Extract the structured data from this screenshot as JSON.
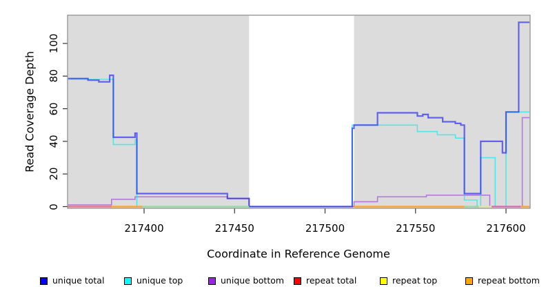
{
  "chart_data": {
    "type": "line",
    "xlabel": "Coordinate in Reference Genome",
    "ylabel": "Read Coverage Depth",
    "xlim": [
      217357.5,
      217613.5
    ],
    "ylim": [
      0,
      117
    ],
    "x_ticks": [
      217400,
      217450,
      217500,
      217550,
      217600
    ],
    "y_ticks": [
      0,
      20,
      40,
      60,
      80,
      100
    ],
    "plot_bg": "#DCDCDC",
    "box_color": "#8C8C8C",
    "tick_color": "#333333",
    "gap_region": {
      "from": 217458,
      "to": 217516,
      "color": "#FFFFFF"
    },
    "series": [
      {
        "name": "unique total",
        "legend_color": "#0000FF",
        "stroke": "rgba(20,20,255,0.62)",
        "width": 2.2,
        "draw_order": 6,
        "points": [
          [
            217358,
            78.5
          ],
          [
            217369,
            78.5
          ],
          [
            217369,
            77.5
          ],
          [
            217375,
            77.5
          ],
          [
            217375,
            76.5
          ],
          [
            217381,
            76.5
          ],
          [
            217381,
            80.5
          ],
          [
            217383,
            80.5
          ],
          [
            217383,
            42.5
          ],
          [
            217395,
            42.5
          ],
          [
            217395,
            45
          ],
          [
            217396,
            45
          ],
          [
            217396,
            8
          ],
          [
            217446,
            8
          ],
          [
            217446,
            5
          ],
          [
            217458,
            5
          ],
          [
            217458,
            0
          ],
          [
            217515,
            0
          ],
          [
            217515,
            48
          ],
          [
            217516,
            48
          ],
          [
            217516,
            50
          ],
          [
            217529,
            50
          ],
          [
            217529,
            57.5
          ],
          [
            217551,
            57.5
          ],
          [
            217551,
            55.5
          ],
          [
            217554,
            55.5
          ],
          [
            217554,
            56.5
          ],
          [
            217557,
            56.5
          ],
          [
            217557,
            54.5
          ],
          [
            217565,
            54.5
          ],
          [
            217565,
            52
          ],
          [
            217572,
            52
          ],
          [
            217572,
            51
          ],
          [
            217575,
            51
          ],
          [
            217575,
            50
          ],
          [
            217577,
            50
          ],
          [
            217577,
            8
          ],
          [
            217586,
            8
          ],
          [
            217586,
            40
          ],
          [
            217598,
            40
          ],
          [
            217598,
            33
          ],
          [
            217600,
            33
          ],
          [
            217600,
            58
          ],
          [
            217607,
            58
          ],
          [
            217607,
            113
          ],
          [
            217613,
            113
          ]
        ]
      },
      {
        "name": "unique top",
        "legend_color": "#00FFFF",
        "stroke": "rgba(0,235,235,0.62)",
        "width": 1.6,
        "draw_order": 5,
        "points": [
          [
            217358,
            78
          ],
          [
            217383,
            78
          ],
          [
            217383,
            38
          ],
          [
            217395,
            38
          ],
          [
            217395,
            41
          ],
          [
            217396,
            41
          ],
          [
            217396,
            0
          ],
          [
            217515,
            0
          ],
          [
            217515,
            50
          ],
          [
            217551,
            50
          ],
          [
            217551,
            46
          ],
          [
            217562,
            46
          ],
          [
            217562,
            44
          ],
          [
            217572,
            44
          ],
          [
            217572,
            42
          ],
          [
            217577,
            42
          ],
          [
            217577,
            4
          ],
          [
            217584,
            4
          ],
          [
            217584,
            0
          ],
          [
            217586,
            0
          ],
          [
            217586,
            30
          ],
          [
            217594,
            30
          ],
          [
            217594,
            0
          ],
          [
            217600,
            0
          ],
          [
            217600,
            58
          ],
          [
            217613,
            58
          ]
        ]
      },
      {
        "name": "unique bottom",
        "legend_color": "#A020F0",
        "stroke": "rgba(160,50,235,0.60)",
        "width": 1.6,
        "draw_order": 4,
        "points": [
          [
            217358,
            1
          ],
          [
            217382,
            1
          ],
          [
            217382,
            4.5
          ],
          [
            217395,
            4.5
          ],
          [
            217395,
            6
          ],
          [
            217446,
            6
          ],
          [
            217446,
            5
          ],
          [
            217458,
            5
          ],
          [
            217458,
            0
          ],
          [
            217516,
            0
          ],
          [
            217516,
            3
          ],
          [
            217529,
            3
          ],
          [
            217529,
            6
          ],
          [
            217556,
            6
          ],
          [
            217556,
            7
          ],
          [
            217591,
            7
          ],
          [
            217591,
            0
          ],
          [
            217609,
            0
          ],
          [
            217609,
            54.5
          ],
          [
            217613,
            54.5
          ]
        ]
      },
      {
        "name": "repeat total",
        "legend_color": "#FF0000",
        "stroke": "rgba(255,0,0,0.55)",
        "width": 1.5,
        "draw_order": 1,
        "points": [
          [
            217358,
            0
          ],
          [
            217613,
            0
          ]
        ]
      },
      {
        "name": "repeat top",
        "legend_color": "#FFFF00",
        "stroke": "rgba(255,255,0,0.55)",
        "width": 1.5,
        "draw_order": 2,
        "points": [
          [
            217358,
            0
          ],
          [
            217613,
            0
          ]
        ]
      },
      {
        "name": "repeat bottom",
        "legend_color": "#FFA500",
        "stroke": "rgba(255,150,0,0.85)",
        "width": 1.5,
        "draw_order": 3,
        "points": [
          [
            217358,
            0
          ],
          [
            217613,
            0
          ]
        ]
      }
    ],
    "zero_overlay_segments": [
      {
        "from": 217358,
        "to": 217382,
        "color": "#F0708C"
      },
      {
        "from": 217382,
        "to": 217399,
        "color": "#FFA125"
      },
      {
        "from": 217399,
        "to": 217458,
        "color": "#96D8A4"
      },
      {
        "from": 217516,
        "to": 217577,
        "color": "#FFA125"
      },
      {
        "from": 217577,
        "to": 217585,
        "color": "#96D8A4"
      },
      {
        "from": 217585,
        "to": 217592,
        "color": "#DFE3A8"
      },
      {
        "from": 217592,
        "to": 217608,
        "color": "#D867AE"
      },
      {
        "from": 217608,
        "to": 217613,
        "color": "#FFA125"
      }
    ]
  },
  "legend": {
    "items": [
      {
        "label": "unique total",
        "color": "#0000FF"
      },
      {
        "label": "unique top",
        "color": "#00FFFF"
      },
      {
        "label": "unique bottom",
        "color": "#A020F0"
      },
      {
        "label": "repeat total",
        "color": "#FF0000"
      },
      {
        "label": "repeat top",
        "color": "#FFFF00"
      },
      {
        "label": "repeat bottom",
        "color": "#FFA500"
      }
    ]
  }
}
